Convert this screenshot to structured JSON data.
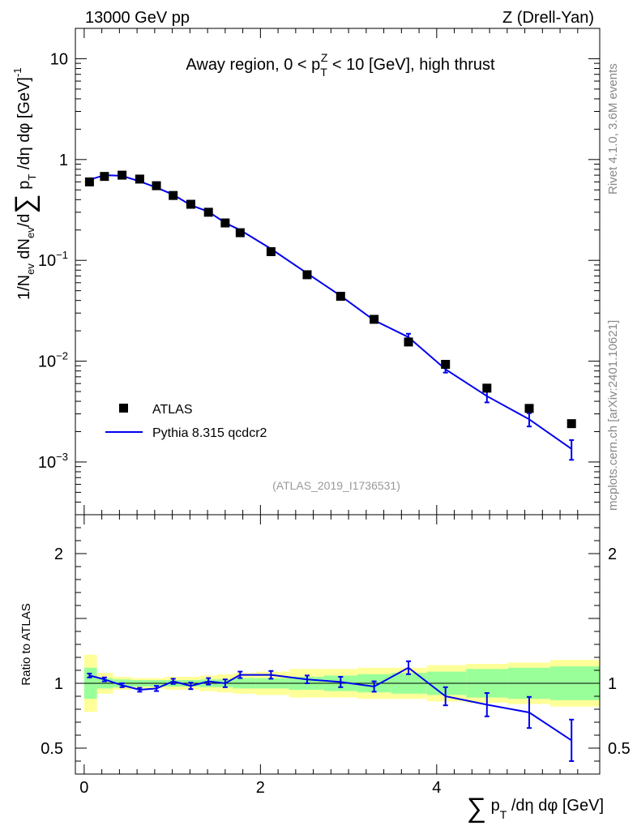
{
  "header": {
    "left": "13000 GeV pp",
    "right": "Z (Drell-Yan)"
  },
  "side": {
    "rivet": "Rivet 4.1.0,  3.6M events",
    "mcplots": "mcplots.cern.ch [arXiv:2401.10621]"
  },
  "chart_data": {
    "type": "line",
    "title": "Away region, 0 < p_T^Z < 10 [GeV], high thrust",
    "analysis_tag": "(ATLAS_2019_I1736531)",
    "xlabel": "∑ p_T /dη dφ [GeV]",
    "ylabel_top": "1/N_ev dN_ev/d∑ p_T /dη dφ  [GeV]^-1",
    "ylabel_ratio": "Ratio to ATLAS",
    "xlim": [
      -0.1,
      5.85
    ],
    "ylim_top": [
      0.0003,
      20
    ],
    "yscale_top": "log",
    "ylim_ratio": [
      0.3,
      2.3
    ],
    "legend": {
      "position": "lower-left",
      "entries": [
        "ATLAS",
        "Pythia 8.315 qcdcr2"
      ]
    },
    "xticks": {
      "major": [
        0,
        2,
        4
      ],
      "major_labels": [
        "0",
        "2",
        "4"
      ]
    },
    "yticks_top": {
      "values": [
        0.001,
        0.01,
        0.1,
        1,
        10
      ],
      "labels": [
        {
          "base": "10",
          "exp": "−3"
        },
        {
          "base": "10",
          "exp": "−2"
        },
        {
          "base": "10",
          "exp": "−1"
        },
        {
          "base": "1",
          "exp": ""
        },
        {
          "base": "10",
          "exp": ""
        }
      ]
    },
    "yticks_ratio": {
      "values": [
        0.5,
        1,
        2
      ],
      "labels": [
        "0.5",
        "1",
        "2"
      ]
    },
    "series": [
      {
        "name": "ATLAS",
        "marker": "square",
        "color": "#000000",
        "x": [
          0.06,
          0.23,
          0.43,
          0.63,
          0.82,
          1.01,
          1.21,
          1.41,
          1.6,
          1.77,
          2.12,
          2.53,
          2.91,
          3.29,
          3.68,
          4.1,
          4.57,
          5.05,
          5.53
        ],
        "y": [
          0.6,
          0.68,
          0.7,
          0.64,
          0.55,
          0.44,
          0.36,
          0.3,
          0.235,
          0.188,
          0.122,
          0.072,
          0.044,
          0.026,
          0.0155,
          0.0093,
          0.0054,
          0.0034,
          0.0024
        ],
        "band_green_half": [
          0.12,
          0.04,
          0.03,
          0.025,
          0.025,
          0.025,
          0.025,
          0.03,
          0.03,
          0.04,
          0.04,
          0.05,
          0.06,
          0.07,
          0.08,
          0.09,
          0.11,
          0.12,
          0.13
        ],
        "band_yellow_half": [
          0.22,
          0.08,
          0.05,
          0.04,
          0.04,
          0.05,
          0.05,
          0.06,
          0.07,
          0.08,
          0.09,
          0.11,
          0.11,
          0.12,
          0.12,
          0.14,
          0.15,
          0.16,
          0.18
        ]
      },
      {
        "name": "Pythia 8.315 qcdcr2",
        "color": "#0000ee",
        "x": [
          0.06,
          0.23,
          0.43,
          0.63,
          0.82,
          1.01,
          1.21,
          1.41,
          1.6,
          1.77,
          2.12,
          2.53,
          2.91,
          3.29,
          3.68,
          4.1,
          4.57,
          5.05,
          5.53
        ],
        "y": [
          0.63,
          0.7,
          0.69,
          0.607,
          0.528,
          0.448,
          0.353,
          0.304,
          0.235,
          0.2,
          0.13,
          0.0744,
          0.0445,
          0.0254,
          0.0173,
          0.0083,
          0.0045,
          0.00265,
          0.00135
        ],
        "err": [
          0.008,
          0.009,
          0.009,
          0.007,
          0.006,
          0.006,
          0.006,
          0.006,
          0.005,
          0.005,
          0.004,
          0.0025,
          0.0015,
          0.0012,
          0.0014,
          0.0006,
          0.0006,
          0.0004,
          0.0003
        ],
        "ratio": [
          1.06,
          1.03,
          0.985,
          0.95,
          0.96,
          1.015,
          0.98,
          1.015,
          1.0,
          1.065,
          1.065,
          1.03,
          1.01,
          0.975,
          1.12,
          0.9,
          0.835,
          0.775,
          0.56
        ],
        "ratio_err": [
          0.015,
          0.015,
          0.015,
          0.015,
          0.02,
          0.02,
          0.025,
          0.025,
          0.03,
          0.025,
          0.03,
          0.03,
          0.04,
          0.04,
          0.05,
          0.07,
          0.09,
          0.12,
          0.16
        ]
      }
    ]
  }
}
